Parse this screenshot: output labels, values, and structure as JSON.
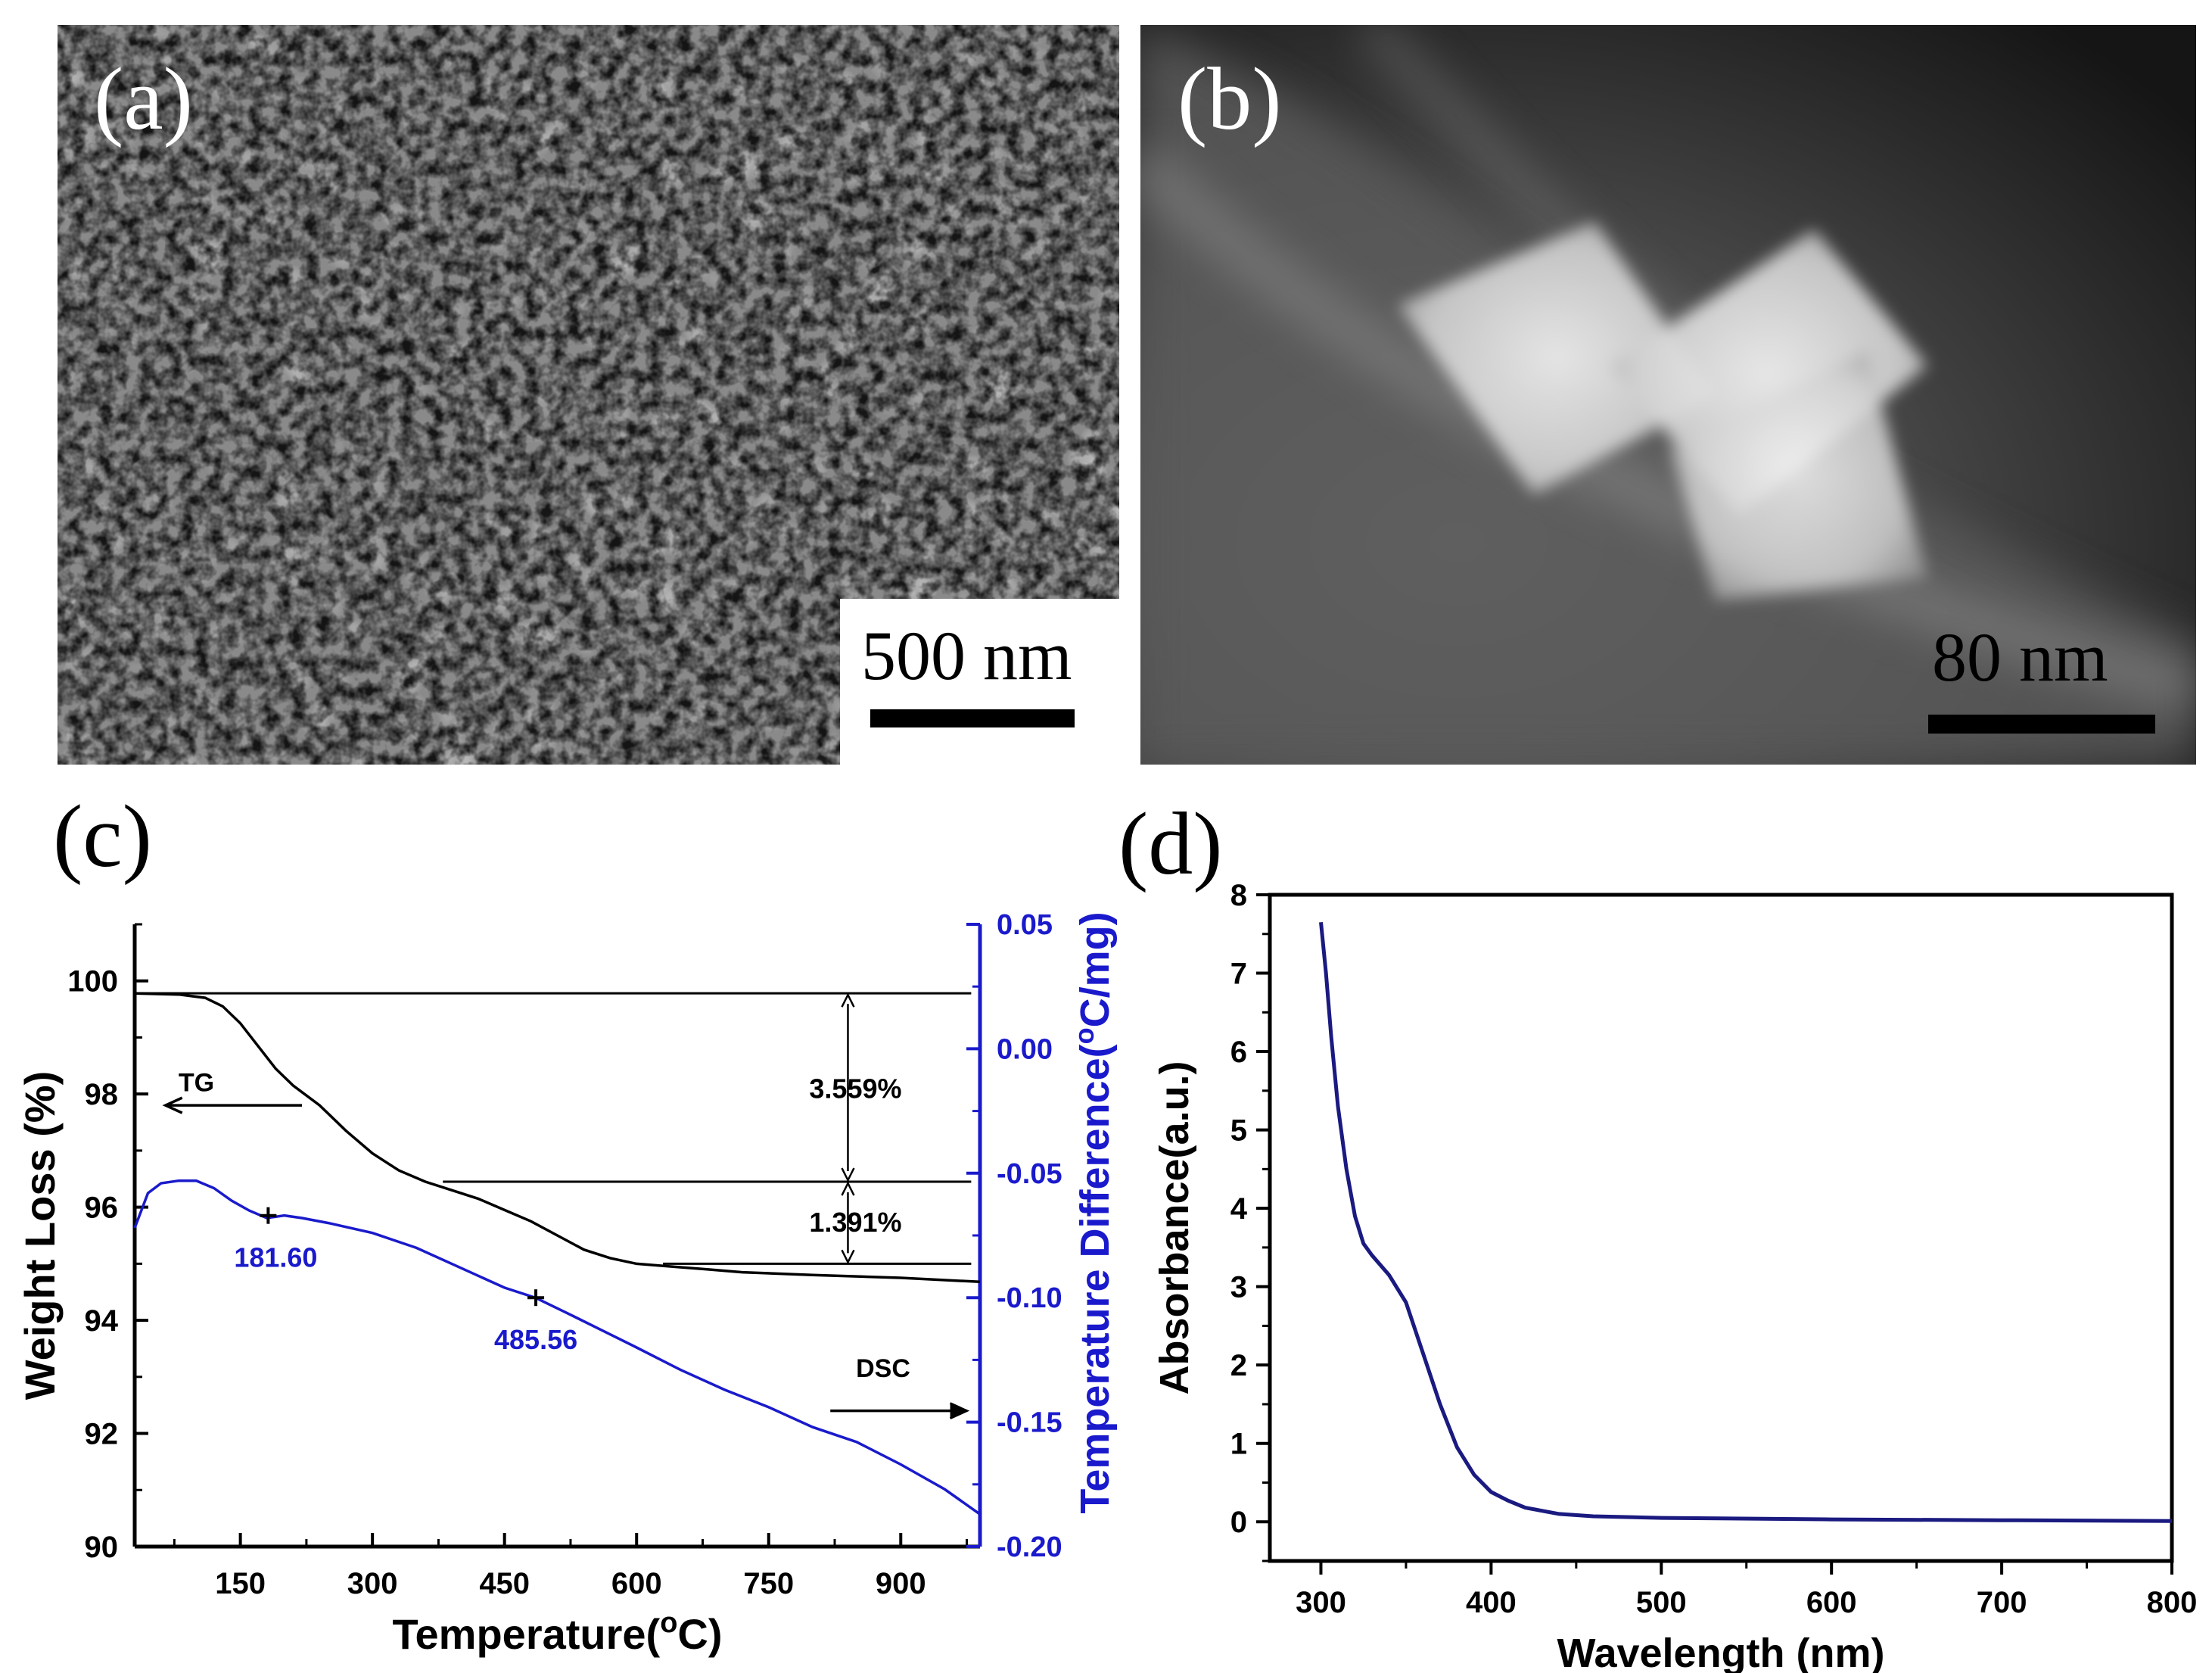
{
  "panels": {
    "a": {
      "label": "(a)",
      "scalebar": "500 nm"
    },
    "b": {
      "label": "(b)",
      "scalebar": "80 nm"
    },
    "c": {
      "label": "(c)"
    },
    "d": {
      "label": "(d)"
    }
  },
  "colors": {
    "tg": "#000000",
    "dsc": "#1a1acc",
    "abs": "#1a1a80"
  },
  "chart_data": [
    {
      "type": "line",
      "xlabel": "Temperature(oC)",
      "ylabel": "Weight Loss (%)",
      "y2label": "Temperature Difference(oC/mg)",
      "xlim": [
        30,
        990
      ],
      "ylim": [
        90,
        101
      ],
      "y2lim": [
        -0.2,
        0.05
      ],
      "xticks": [
        150,
        300,
        450,
        600,
        750,
        900
      ],
      "yticks": [
        90,
        92,
        94,
        96,
        98,
        100
      ],
      "y2ticks": [
        "0.05",
        "0.00",
        "-0.05",
        "-0.10",
        "-0.15",
        "-0.20"
      ],
      "series": [
        {
          "name": "TG",
          "axis": "left",
          "x": [
            30,
            80,
            110,
            130,
            150,
            170,
            190,
            210,
            240,
            270,
            300,
            330,
            360,
            390,
            420,
            450,
            480,
            510,
            540,
            570,
            600,
            640,
            680,
            720,
            800,
            900,
            990
          ],
          "y": [
            99.78,
            99.76,
            99.7,
            99.55,
            99.25,
            98.85,
            98.45,
            98.15,
            97.8,
            97.35,
            96.95,
            96.65,
            96.45,
            96.3,
            96.15,
            95.95,
            95.75,
            95.5,
            95.25,
            95.1,
            95.0,
            94.95,
            94.9,
            94.85,
            94.8,
            94.75,
            94.68
          ]
        },
        {
          "name": "DSC",
          "axis": "right",
          "x": [
            30,
            45,
            60,
            80,
            100,
            120,
            140,
            160,
            180,
            200,
            220,
            250,
            300,
            350,
            400,
            450,
            485,
            520,
            560,
            600,
            650,
            700,
            750,
            800,
            850,
            900,
            950,
            990
          ],
          "y": [
            -0.072,
            -0.058,
            -0.054,
            -0.053,
            -0.053,
            -0.056,
            -0.061,
            -0.065,
            -0.068,
            -0.067,
            -0.068,
            -0.07,
            -0.074,
            -0.08,
            -0.088,
            -0.096,
            -0.1,
            -0.106,
            -0.113,
            -0.12,
            -0.129,
            -0.137,
            -0.144,
            -0.152,
            -0.158,
            -0.167,
            -0.177,
            -0.187
          ]
        }
      ],
      "levels": [
        {
          "x_start": 30,
          "x_end": 980,
          "y": 99.78
        },
        {
          "x_start": 380,
          "x_end": 980,
          "y": 96.45
        },
        {
          "x_start": 630,
          "x_end": 980,
          "y": 95.0
        }
      ],
      "annotations": {
        "tg_label": "TG",
        "dsc_label": "DSC",
        "loss1": "3.559%",
        "loss2": "1.391%",
        "peak1": {
          "text": "181.60",
          "x": 181.6,
          "y": -0.067
        },
        "peak2": {
          "text": "485.56",
          "x": 485.56,
          "y": -0.1
        }
      }
    },
    {
      "type": "line",
      "xlabel": "Wavelength (nm)",
      "ylabel": "Absorbance(a.u.)",
      "xlim": [
        270,
        800
      ],
      "ylim": [
        -0.5,
        8
      ],
      "xticks": [
        300,
        400,
        500,
        600,
        700,
        800
      ],
      "yticks": [
        0,
        1,
        2,
        3,
        4,
        5,
        6,
        7,
        8
      ],
      "series": [
        {
          "name": "Absorbance",
          "axis": "left",
          "x": [
            300,
            303,
            306,
            310,
            315,
            320,
            325,
            330,
            340,
            350,
            360,
            370,
            380,
            390,
            400,
            410,
            420,
            440,
            460,
            500,
            600,
            700,
            800
          ],
          "y": [
            7.65,
            7.0,
            6.2,
            5.3,
            4.5,
            3.9,
            3.55,
            3.4,
            3.15,
            2.8,
            2.15,
            1.5,
            0.95,
            0.6,
            0.38,
            0.27,
            0.18,
            0.1,
            0.07,
            0.05,
            0.03,
            0.02,
            0.01
          ]
        }
      ]
    }
  ]
}
